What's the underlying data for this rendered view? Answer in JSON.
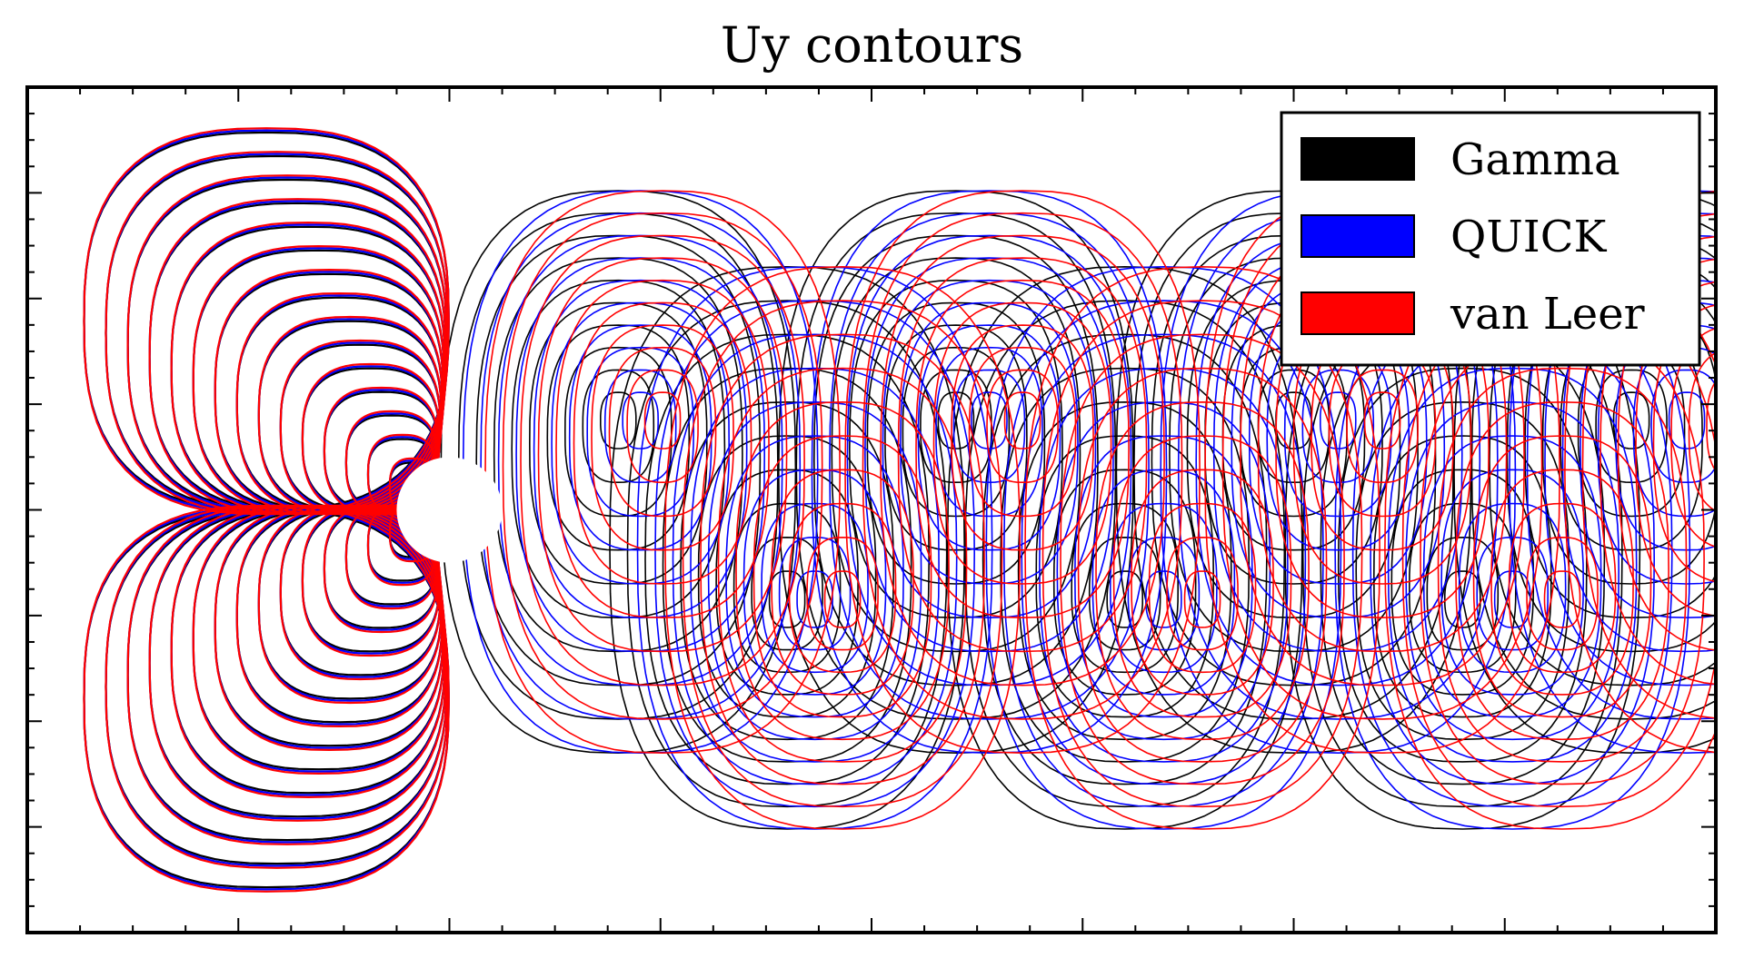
{
  "chart_data": {
    "type": "contour",
    "title": "Uy contours",
    "xlabel": "",
    "ylabel": "",
    "legend_position": "top-right",
    "series": [
      {
        "name": "Gamma",
        "color": "#000000",
        "vortex_shift": 0.0
      },
      {
        "name": "QUICK",
        "color": "#0000ff",
        "vortex_shift": 0.35
      },
      {
        "name": "van Leer",
        "color": "#ff0000",
        "vortex_shift": 0.7
      }
    ],
    "cylinder": {
      "center_x": 0.0,
      "center_y": 0.0,
      "radius": 0.5
    },
    "domain": {
      "xlim": [
        -4.0,
        12.0
      ],
      "ylim": [
        -4.0,
        4.0
      ]
    },
    "x_major_ticks": [
      -2,
      0,
      2,
      4,
      6,
      8,
      10
    ],
    "y_major_ticks": [
      -3,
      -2,
      -1,
      0,
      1,
      2,
      3
    ],
    "tick_labels_shown": false,
    "grid": false
  },
  "legend": {
    "items": [
      {
        "label": "Gamma",
        "color": "#000000"
      },
      {
        "label": "QUICK",
        "color": "#0000ff"
      },
      {
        "label": "van Leer",
        "color": "#ff0000"
      }
    ]
  }
}
